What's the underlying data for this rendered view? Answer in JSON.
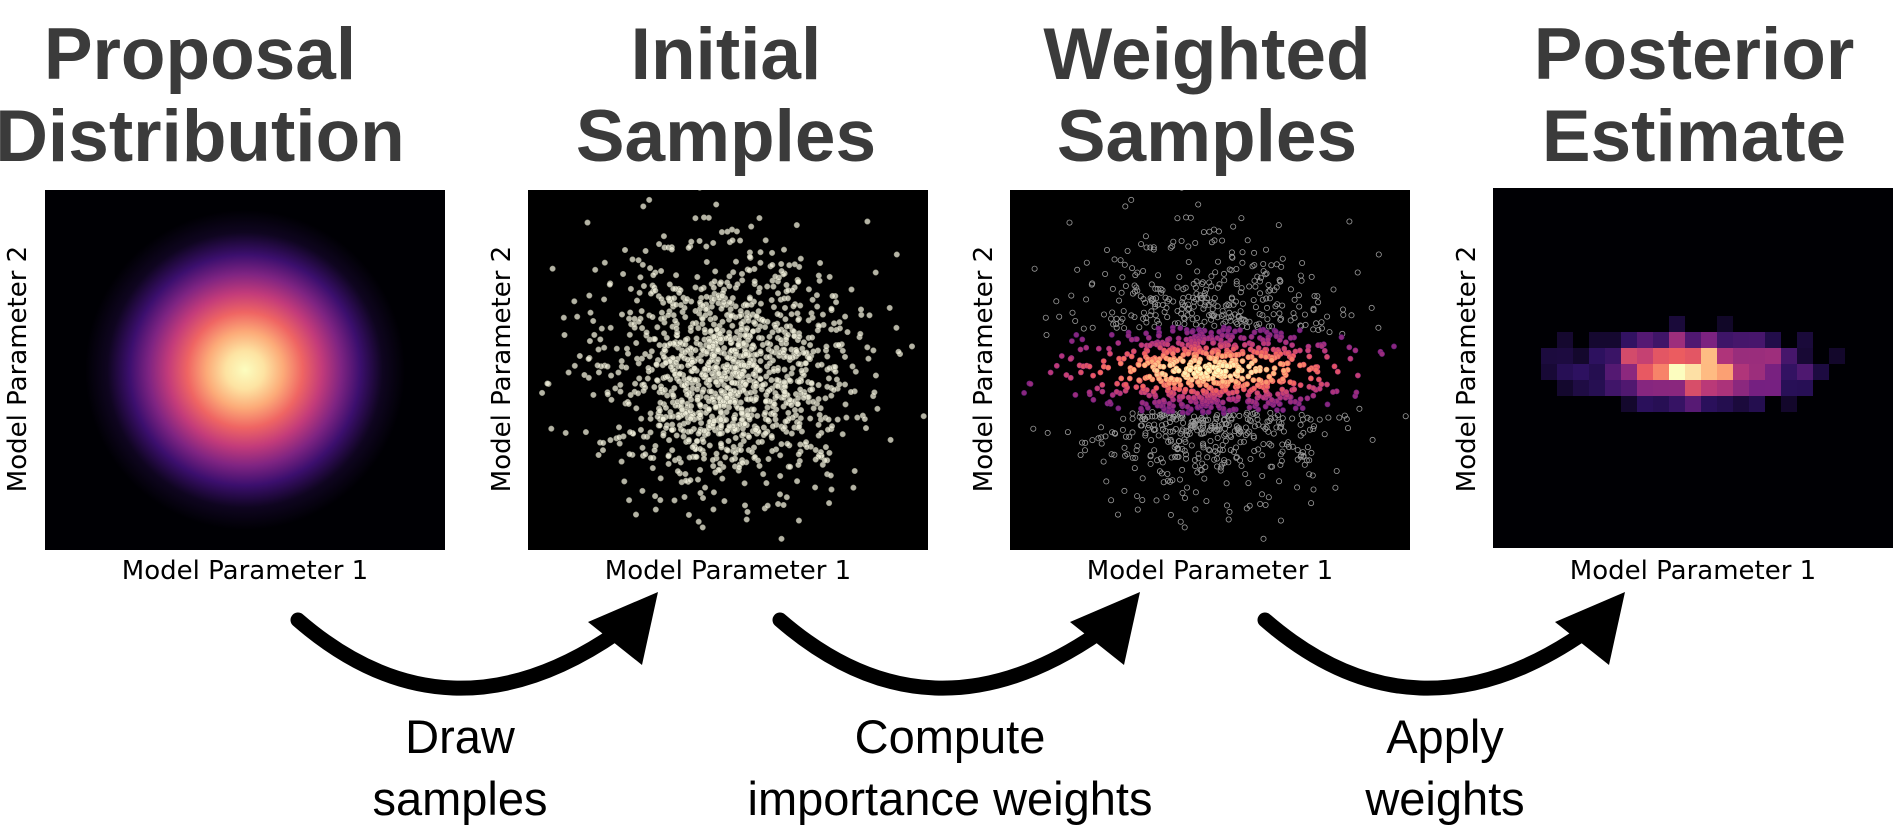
{
  "panels": [
    {
      "title_line1": "Proposal",
      "title_line2": "Distribution",
      "x_label": "Model Parameter 1",
      "y_label": "Model Parameter 2"
    },
    {
      "title_line1": "Initial",
      "title_line2": "Samples",
      "x_label": "Model Parameter 1",
      "y_label": "Model Parameter 2"
    },
    {
      "title_line1": "Weighted",
      "title_line2": "Samples",
      "x_label": "Model Parameter 1",
      "y_label": "Model Parameter 2"
    },
    {
      "title_line1": "Posterior",
      "title_line2": "Estimate",
      "x_label": "Model Parameter 1",
      "y_label": "Model Parameter 2"
    }
  ],
  "steps": [
    {
      "line1": "Draw",
      "line2": "samples"
    },
    {
      "line1": "Compute",
      "line2": "importance weights"
    },
    {
      "line1": "Apply",
      "line2": "weights"
    }
  ],
  "colors": {
    "title": "#3b3b3b",
    "plot_background": "#000000",
    "sample_point": "#f2f0dc",
    "arrow": "#000000",
    "magma": [
      "#000004",
      "#2c115f",
      "#721f81",
      "#b73779",
      "#f1605d",
      "#feb078",
      "#fcfdbf"
    ]
  },
  "icons": {
    "arrow": "curved-arrow-icon"
  }
}
